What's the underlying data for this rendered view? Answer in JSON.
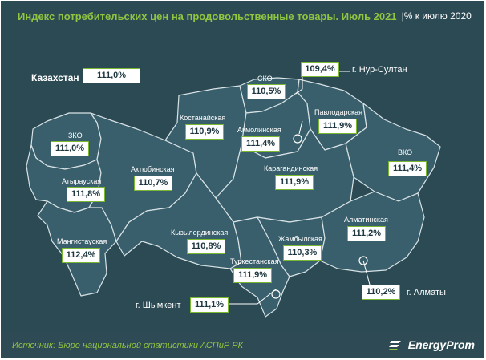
{
  "title": {
    "main": "Индекс потребительских цен на продовольственные товары. Июль 2021",
    "sub": "|% к июлю 2020"
  },
  "country": {
    "name": "Казахстан",
    "value": "111,0%"
  },
  "regions": [
    {
      "key": "sko",
      "name": "СКО",
      "value": "110,5%"
    },
    {
      "key": "nur-sultan",
      "name": "г. Нур-Султан",
      "value": "109,4%"
    },
    {
      "key": "pavlodar",
      "name": "Павлодарская",
      "value": "111,9%"
    },
    {
      "key": "kostanay",
      "name": "Костанайская",
      "value": "110,9%"
    },
    {
      "key": "akmola",
      "name": "Акмолинская",
      "value": "111,4%"
    },
    {
      "key": "zko",
      "name": "ЗКО",
      "value": "111,0%"
    },
    {
      "key": "vko",
      "name": "ВКО",
      "value": "111,4%"
    },
    {
      "key": "atyrau",
      "name": "Атырауская",
      "value": "111,8%"
    },
    {
      "key": "aktobe",
      "name": "Актюбинская",
      "value": "110,7%"
    },
    {
      "key": "karaganda",
      "name": "Карагандинская",
      "value": "111,9%"
    },
    {
      "key": "almaty-region",
      "name": "Алматинская",
      "value": "111,2%"
    },
    {
      "key": "kyzylorda",
      "name": "Кызылординская",
      "value": "110,8%"
    },
    {
      "key": "mangistau",
      "name": "Мангистауская",
      "value": "112,4%"
    },
    {
      "key": "zhambyl",
      "name": "Жамбылская",
      "value": "110,3%"
    },
    {
      "key": "turkestan",
      "name": "Туркестанская",
      "value": "111,9%"
    },
    {
      "key": "almaty-city",
      "name": "г. Алматы",
      "value": "110,2%"
    },
    {
      "key": "shymkent",
      "name": "г. Шымкент",
      "value": "111,1%"
    }
  ],
  "footer": {
    "source": "Источник: Бюро национальной статистики АСПиР РК",
    "brand": "EnergyProm"
  },
  "colors": {
    "background": "#2c4a54",
    "map_fill": "#3a5f6c",
    "borders": "#d7e2e5",
    "accent_green": "#8fc640",
    "value_box_border": "#7ab832"
  },
  "icons": {
    "brand": "energyprom-logo-icon",
    "city": "city-marker-icon"
  }
}
